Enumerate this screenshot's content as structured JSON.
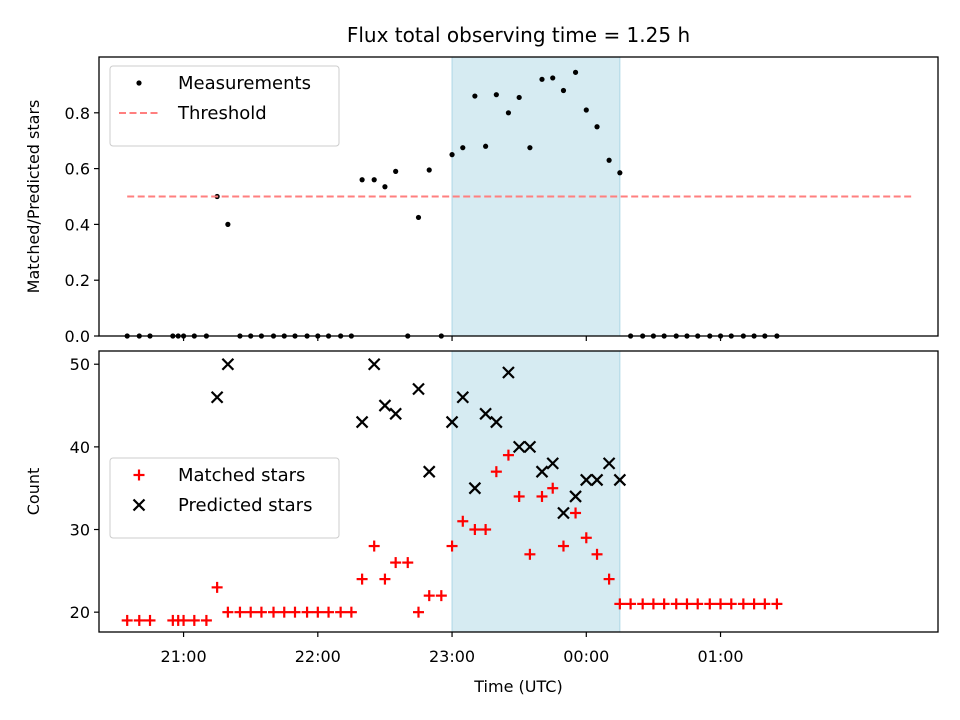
{
  "chart_data": {
    "title": "Flux total observing time = 1.25 h",
    "xlabel": "Time (UTC)",
    "x_ticks": [
      {
        "t": 21.0,
        "label": "21:00"
      },
      {
        "t": 22.0,
        "label": "22:00"
      },
      {
        "t": 23.0,
        "label": "23:00"
      },
      {
        "t": 24.0,
        "label": "00:00"
      },
      {
        "t": 25.0,
        "label": "01:00"
      }
    ],
    "x_range": [
      20.37,
      26.62
    ],
    "highlight_range": [
      23.0,
      24.25
    ],
    "colors": {
      "measurements": "#000000",
      "threshold": "#ff7f7f",
      "matched": "#ff0000",
      "predicted": "#000000",
      "highlight": "#add8e6"
    },
    "panels": [
      {
        "type": "scatter",
        "ylabel": "Matched/Predicted stars",
        "ylim": [
          0,
          1.0
        ],
        "y_ticks": [
          {
            "v": 0.0,
            "label": "0.0"
          },
          {
            "v": 0.2,
            "label": "0.2"
          },
          {
            "v": 0.4,
            "label": "0.4"
          },
          {
            "v": 0.6,
            "label": "0.6"
          },
          {
            "v": 0.8,
            "label": "0.8"
          }
        ],
        "legend_position": "upper-left",
        "series": [
          {
            "name": "Measurements",
            "marker": "dot",
            "points": [
              [
                20.58,
                0
              ],
              [
                20.67,
                0
              ],
              [
                20.75,
                0
              ],
              [
                20.92,
                0
              ],
              [
                20.96,
                0
              ],
              [
                21.0,
                0
              ],
              [
                21.08,
                0
              ],
              [
                21.17,
                0
              ],
              [
                21.25,
                0.5
              ],
              [
                21.33,
                0.4
              ],
              [
                21.42,
                0
              ],
              [
                21.5,
                0
              ],
              [
                21.58,
                0
              ],
              [
                21.67,
                0
              ],
              [
                21.75,
                0
              ],
              [
                21.83,
                0
              ],
              [
                21.92,
                0
              ],
              [
                22.0,
                0
              ],
              [
                22.08,
                0
              ],
              [
                22.17,
                0
              ],
              [
                22.25,
                0
              ],
              [
                22.33,
                0.56
              ],
              [
                22.42,
                0.56
              ],
              [
                22.5,
                0.535
              ],
              [
                22.58,
                0.59
              ],
              [
                22.67,
                0
              ],
              [
                22.75,
                0.425
              ],
              [
                22.83,
                0.595
              ],
              [
                22.92,
                0
              ],
              [
                23.0,
                0.65
              ],
              [
                23.08,
                0.675
              ],
              [
                23.17,
                0.86
              ],
              [
                23.25,
                0.68
              ],
              [
                23.33,
                0.865
              ],
              [
                23.42,
                0.8
              ],
              [
                23.5,
                0.855
              ],
              [
                23.58,
                0.675
              ],
              [
                23.67,
                0.92
              ],
              [
                23.75,
                0.925
              ],
              [
                23.83,
                0.88
              ],
              [
                23.92,
                0.945
              ],
              [
                24.0,
                0.81
              ],
              [
                24.08,
                0.75
              ],
              [
                24.17,
                0.63
              ],
              [
                24.25,
                0.585
              ],
              [
                24.33,
                0
              ],
              [
                24.42,
                0
              ],
              [
                24.5,
                0
              ],
              [
                24.58,
                0
              ],
              [
                24.67,
                0
              ],
              [
                24.75,
                0
              ],
              [
                24.83,
                0
              ],
              [
                24.92,
                0
              ],
              [
                25.0,
                0
              ],
              [
                25.08,
                0
              ],
              [
                25.17,
                0
              ],
              [
                25.25,
                0
              ],
              [
                25.33,
                0
              ],
              [
                25.42,
                0
              ]
            ]
          },
          {
            "name": "Threshold",
            "marker": "dashed-line",
            "points": [
              [
                20.58,
                0.5
              ],
              [
                26.42,
                0.5
              ]
            ]
          }
        ]
      },
      {
        "type": "scatter",
        "ylabel": "Count",
        "ylim": [
          17.6,
          51.6
        ],
        "y_ticks": [
          {
            "v": 20,
            "label": "20"
          },
          {
            "v": 30,
            "label": "30"
          },
          {
            "v": 40,
            "label": "40"
          },
          {
            "v": 50,
            "label": "50"
          }
        ],
        "legend_position": "center-left",
        "series": [
          {
            "name": "Matched stars",
            "marker": "plus",
            "points": [
              [
                20.58,
                19
              ],
              [
                20.67,
                19
              ],
              [
                20.75,
                19
              ],
              [
                20.92,
                19
              ],
              [
                20.96,
                19
              ],
              [
                21.0,
                19
              ],
              [
                21.08,
                19
              ],
              [
                21.17,
                19
              ],
              [
                21.25,
                23
              ],
              [
                21.33,
                20
              ],
              [
                21.42,
                20
              ],
              [
                21.5,
                20
              ],
              [
                21.58,
                20
              ],
              [
                21.67,
                20
              ],
              [
                21.75,
                20
              ],
              [
                21.83,
                20
              ],
              [
                21.92,
                20
              ],
              [
                22.0,
                20
              ],
              [
                22.08,
                20
              ],
              [
                22.17,
                20
              ],
              [
                22.25,
                20
              ],
              [
                22.33,
                24
              ],
              [
                22.42,
                28
              ],
              [
                22.5,
                24
              ],
              [
                22.58,
                26
              ],
              [
                22.67,
                26
              ],
              [
                22.75,
                20
              ],
              [
                22.83,
                22
              ],
              [
                22.92,
                22
              ],
              [
                23.0,
                28
              ],
              [
                23.08,
                31
              ],
              [
                23.17,
                30
              ],
              [
                23.25,
                30
              ],
              [
                23.33,
                37
              ],
              [
                23.42,
                39
              ],
              [
                23.5,
                34
              ],
              [
                23.58,
                27
              ],
              [
                23.67,
                34
              ],
              [
                23.75,
                35
              ],
              [
                23.83,
                28
              ],
              [
                23.92,
                32
              ],
              [
                24.0,
                29
              ],
              [
                24.08,
                27
              ],
              [
                24.17,
                24
              ],
              [
                24.25,
                21
              ],
              [
                24.33,
                21
              ],
              [
                24.42,
                21
              ],
              [
                24.5,
                21
              ],
              [
                24.58,
                21
              ],
              [
                24.67,
                21
              ],
              [
                24.75,
                21
              ],
              [
                24.83,
                21
              ],
              [
                24.92,
                21
              ],
              [
                25.0,
                21
              ],
              [
                25.08,
                21
              ],
              [
                25.17,
                21
              ],
              [
                25.25,
                21
              ],
              [
                25.33,
                21
              ],
              [
                25.42,
                21
              ]
            ]
          },
          {
            "name": "Predicted stars",
            "marker": "x",
            "points": [
              [
                21.25,
                46
              ],
              [
                21.33,
                50
              ],
              [
                22.33,
                43
              ],
              [
                22.42,
                50
              ],
              [
                22.5,
                45
              ],
              [
                22.58,
                44
              ],
              [
                22.75,
                47
              ],
              [
                22.83,
                37
              ],
              [
                23.0,
                43
              ],
              [
                23.08,
                46
              ],
              [
                23.17,
                35
              ],
              [
                23.25,
                44
              ],
              [
                23.33,
                43
              ],
              [
                23.42,
                49
              ],
              [
                23.5,
                40
              ],
              [
                23.58,
                40
              ],
              [
                23.67,
                37
              ],
              [
                23.75,
                38
              ],
              [
                23.83,
                32
              ],
              [
                23.92,
                34
              ],
              [
                24.0,
                36
              ],
              [
                24.08,
                36
              ],
              [
                24.17,
                38
              ],
              [
                24.25,
                36
              ]
            ]
          }
        ]
      }
    ]
  }
}
